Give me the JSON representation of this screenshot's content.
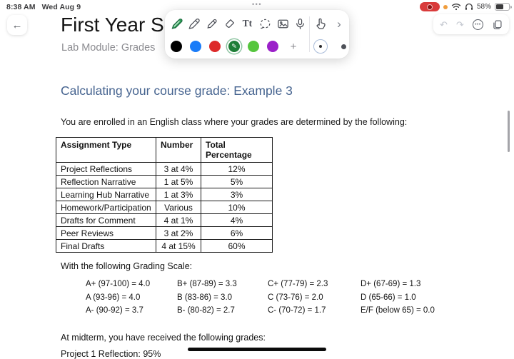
{
  "status_bar": {
    "time": "8:38 AM",
    "date": "Wed Aug 9",
    "multitask_dots": "•••",
    "battery_percent": "58%"
  },
  "header": {
    "title": "First Year Se",
    "subtitle": "Lab Module: Grades"
  },
  "toolbar": {
    "text_tool_label": "Tt",
    "more_tools_chevron": "›",
    "add_color_label": "+",
    "selected_pen_glyph": "✎",
    "colors": [
      {
        "name": "black",
        "hex": "#000000",
        "selected": false
      },
      {
        "name": "blue",
        "hex": "#1a7cf8",
        "selected": false
      },
      {
        "name": "red",
        "hex": "#dd2a2a",
        "selected": false
      },
      {
        "name": "green",
        "hex": "#1e7e37",
        "selected": true
      },
      {
        "name": "light-green",
        "hex": "#56c63e",
        "selected": false
      },
      {
        "name": "purple",
        "hex": "#9b20c9",
        "selected": false
      }
    ]
  },
  "mini_bar": {
    "undo": "↶",
    "redo": "↷",
    "more_dots": "•••"
  },
  "note": {
    "heading": "Calculating your course grade: Example 3",
    "heading_color": "#45638f",
    "intro": "You are enrolled in an English class where your grades are determined by the following:",
    "table": {
      "headers": [
        "Assignment Type",
        "Number",
        "Total Percentage"
      ],
      "rows": [
        [
          "Project Reflections",
          "3 at 4%",
          "12%"
        ],
        [
          "Reflection Narrative",
          "1 at 5%",
          "5%"
        ],
        [
          "Learning Hub Narrative",
          "1 at 3%",
          "3%"
        ],
        [
          "Homework/Participation",
          "Various",
          "10%"
        ],
        [
          "Drafts for Comment",
          "4 at 1%",
          "4%"
        ],
        [
          "Peer Reviews",
          "3 at 2%",
          "6%"
        ],
        [
          "Final Drafts",
          "4 at 15%",
          "60%"
        ]
      ]
    },
    "grading_scale_label": "With the following Grading Scale:",
    "grading_scale": [
      [
        "A+ (97-100) = 4.0",
        "A (93-96) = 4.0",
        "A- (90-92) = 3.7"
      ],
      [
        "B+ (87-89) = 3.3",
        "B (83-86) = 3.0",
        "B- (80-82) = 2.7"
      ],
      [
        "C+ (77-79) = 2.3",
        "C (73-76) = 2.0",
        "C- (70-72) = 1.7"
      ],
      [
        "D+ (67-69) = 1.3",
        "D (65-66) = 1.0",
        "E/F (below 65) = 0.0"
      ]
    ],
    "midterm_label": "At midterm, you have received the following grades:",
    "partial_line": "Project 1 Reflection: 95%"
  }
}
